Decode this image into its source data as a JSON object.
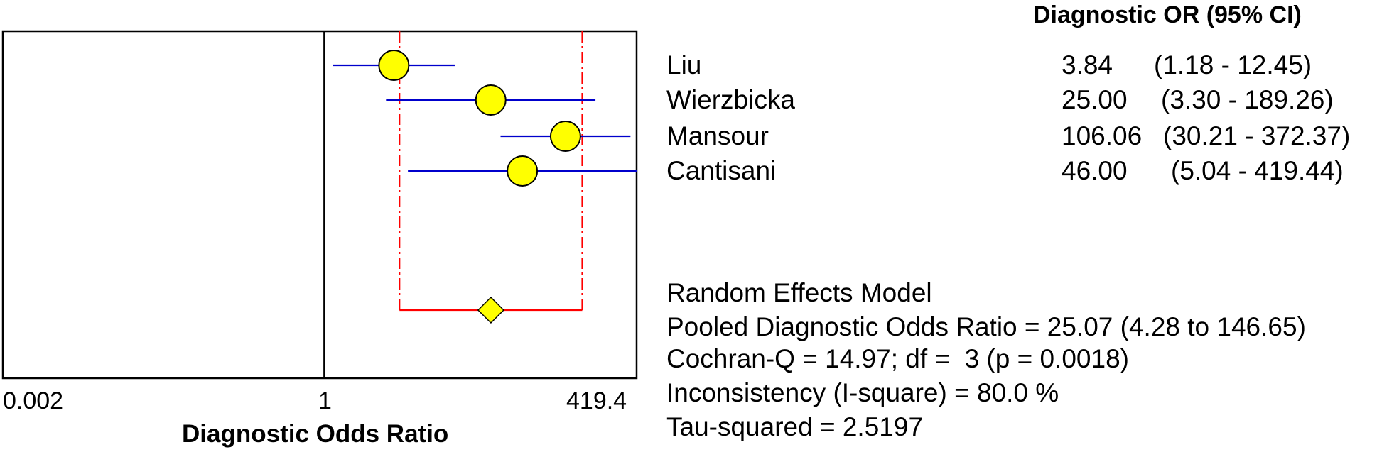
{
  "chart_data": {
    "type": "forest",
    "scale": "log",
    "xlabel": "Diagnostic Odds Ratio",
    "xlim": [
      0.002,
      419.4
    ],
    "x_ticks": [
      "0.002",
      "1",
      "419.4"
    ],
    "x_tick_values": [
      0.002,
      1,
      419.4
    ],
    "column_header": "Diagnostic OR (95% CI)",
    "studies": [
      {
        "name": "Liu",
        "or": 3.84,
        "lower": 1.18,
        "upper": 12.45,
        "or_text": "3.84",
        "ci_text": "(1.18 - 12.45)"
      },
      {
        "name": "Wierzbicka",
        "or": 25.0,
        "lower": 3.3,
        "upper": 189.26,
        "or_text": "25.00",
        "ci_text": "(3.30 - 189.26)"
      },
      {
        "name": "Mansour",
        "or": 106.06,
        "lower": 30.21,
        "upper": 372.37,
        "or_text": "106.06",
        "ci_text": "(30.21 - 372.37)"
      },
      {
        "name": "Cantisani",
        "or": 46.0,
        "lower": 5.04,
        "upper": 419.44,
        "or_text": "46.00",
        "ci_text": "(5.04 - 419.44)"
      }
    ],
    "pooled": {
      "or": 25.07,
      "lower": 4.28,
      "upper": 146.65
    },
    "summary_lines": [
      "Random Effects Model",
      "Pooled Diagnostic Odds Ratio = 25.07 (4.28 to 146.65)",
      "Cochran-Q = 14.97; df =  3 (p = 0.0018)",
      "Inconsistency (I-square) = 80.0 %",
      "Tau-squared = 2.5197"
    ],
    "colors": {
      "marker_fill": "#ffff00",
      "ci_line": "#0000cc",
      "pooled_line": "#ff0000",
      "axis": "#000000"
    }
  }
}
